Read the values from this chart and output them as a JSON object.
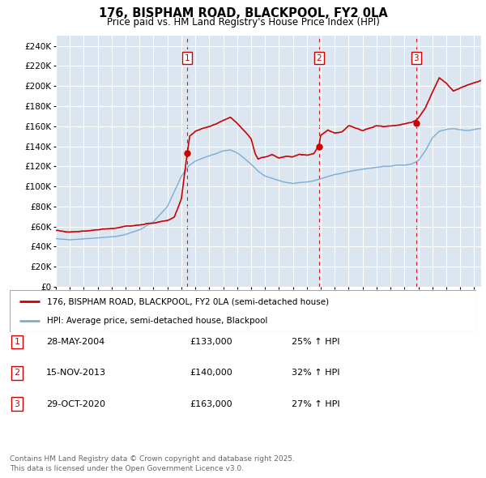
{
  "title": "176, BISPHAM ROAD, BLACKPOOL, FY2 0LA",
  "subtitle": "Price paid vs. HM Land Registry's House Price Index (HPI)",
  "plot_bg_color": "#dce6f1",
  "ylim": [
    0,
    250000
  ],
  "yticks": [
    0,
    20000,
    40000,
    60000,
    80000,
    100000,
    120000,
    140000,
    160000,
    180000,
    200000,
    220000,
    240000
  ],
  "sale_markers": [
    {
      "label": "1",
      "date_x": 2004.4,
      "price": 133000
    },
    {
      "label": "2",
      "date_x": 2013.88,
      "price": 140000
    },
    {
      "label": "3",
      "date_x": 2020.83,
      "price": 163000
    }
  ],
  "legend_entries": [
    {
      "label": "176, BISPHAM ROAD, BLACKPOOL, FY2 0LA (semi-detached house)",
      "color": "#cc0000"
    },
    {
      "label": "HPI: Average price, semi-detached house, Blackpool",
      "color": "#7aadd4"
    }
  ],
  "table_rows": [
    {
      "num": "1",
      "date": "28-MAY-2004",
      "price": "£133,000",
      "change": "25% ↑ HPI"
    },
    {
      "num": "2",
      "date": "15-NOV-2013",
      "price": "£140,000",
      "change": "32% ↑ HPI"
    },
    {
      "num": "3",
      "date": "29-OCT-2020",
      "price": "£163,000",
      "change": "27% ↑ HPI"
    }
  ],
  "footer": "Contains HM Land Registry data © Crown copyright and database right 2025.\nThis data is licensed under the Open Government Licence v3.0.",
  "xmin": 1995,
  "xmax": 2025.5
}
